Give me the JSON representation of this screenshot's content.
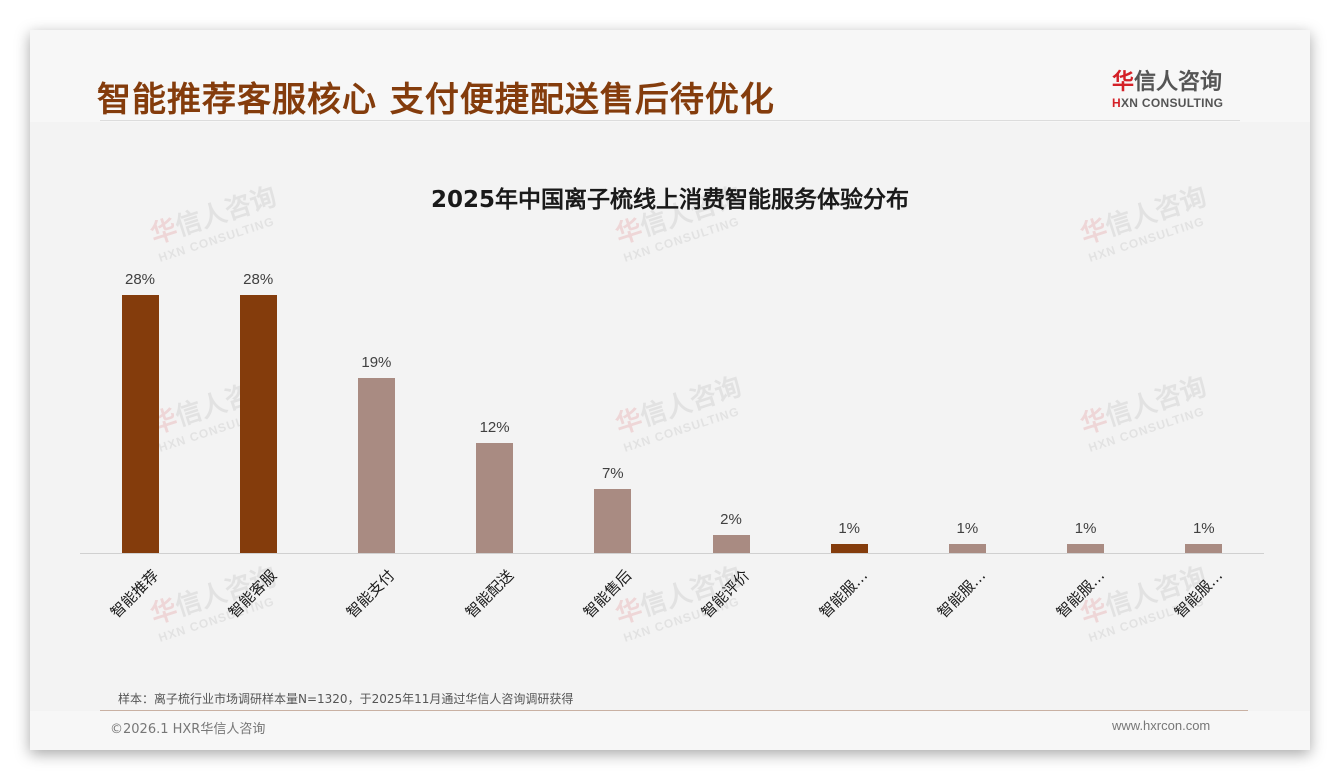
{
  "header": {
    "title": "智能推荐客服核心 支付便捷配送售后待优化",
    "logo_cn_first": "华",
    "logo_cn_rest": "信人咨询",
    "logo_en_first": "H",
    "logo_en_rest": "XN CONSULTING"
  },
  "watermark": {
    "cn_first": "华",
    "cn_rest": "信人咨询",
    "en": "HXN CONSULTING"
  },
  "colors": {
    "highlight": "#843c0c",
    "normal": "#a98b82",
    "title": "#843c0c"
  },
  "chart_data": {
    "type": "bar",
    "title": "2025年中国离子梳线上消费智能服务体验分布",
    "xlabel": "",
    "ylabel": "",
    "ylim": [
      0,
      30
    ],
    "grid": false,
    "legend": null,
    "categories": [
      "智能推荐",
      "智能客服",
      "智能支付",
      "智能配送",
      "智能售后",
      "智能评价",
      "智能服…",
      "智能服…",
      "智能服…",
      "智能服…"
    ],
    "values": [
      28,
      28,
      19,
      12,
      7,
      2,
      1,
      1,
      1,
      1
    ],
    "value_labels": [
      "28%",
      "28%",
      "19%",
      "12%",
      "7%",
      "2%",
      "1%",
      "1%",
      "1%",
      "1%"
    ],
    "highlighted": [
      true,
      true,
      false,
      false,
      false,
      false,
      true,
      false,
      false,
      false
    ],
    "unit": "%"
  },
  "footer": {
    "note": "样本：离子梳行业市场调研样本量N=1320，于2025年11月通过华信人咨询调研获得",
    "copyright": "©2026.1 HXR华信人咨询",
    "website": "www.hxrcon.com"
  }
}
